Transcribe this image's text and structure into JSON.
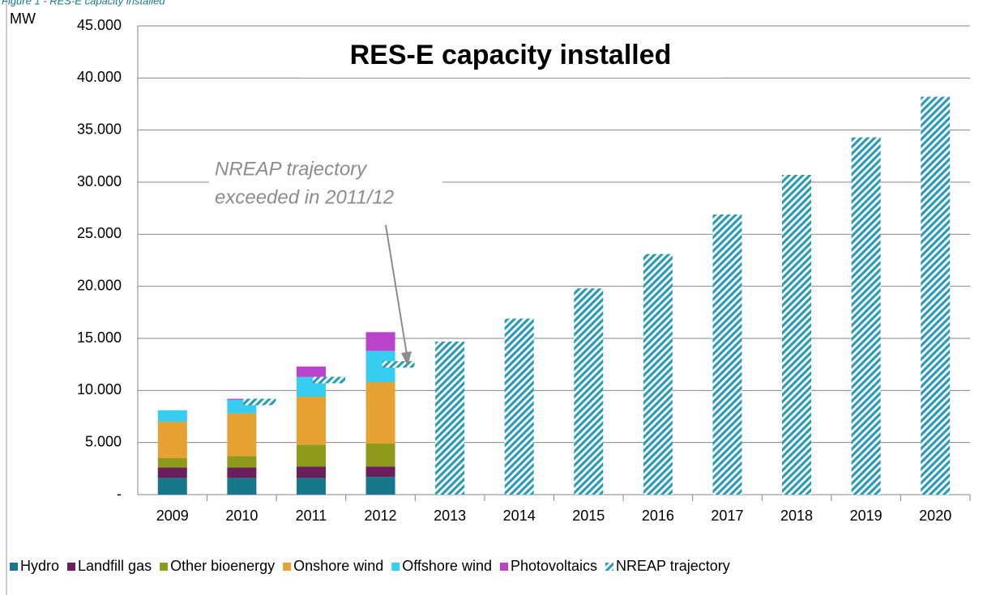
{
  "chart_data": {
    "type": "stacked_bar",
    "caption": "Figure 1 - RES-E capacity installed",
    "title": "RES-E capacity installed",
    "y_label": "MW",
    "annotation": [
      "NREAP trajectory",
      "exceeded in 2011/12"
    ],
    "categories": [
      "2009",
      "2010",
      "2011",
      "2012",
      "2013",
      "2014",
      "2015",
      "2016",
      "2017",
      "2018",
      "2019",
      "2020"
    ],
    "series": [
      {
        "name": "Hydro",
        "color": "#17788c",
        "values": [
          1600,
          1600,
          1600,
          1700,
          null,
          null,
          null,
          null,
          null,
          null,
          null,
          null
        ]
      },
      {
        "name": "Landfill gas",
        "color": "#6a1f5c",
        "values": [
          1000,
          1000,
          1100,
          1000,
          null,
          null,
          null,
          null,
          null,
          null,
          null,
          null
        ]
      },
      {
        "name": "Other bioenergy",
        "color": "#8d9a1b",
        "values": [
          900,
          1100,
          2100,
          2200,
          null,
          null,
          null,
          null,
          null,
          null,
          null,
          null
        ]
      },
      {
        "name": "Onshore wind",
        "color": "#e6a133",
        "values": [
          3500,
          4100,
          4600,
          5900,
          null,
          null,
          null,
          null,
          null,
          null,
          null,
          null
        ]
      },
      {
        "name": "Offshore wind",
        "color": "#37cdf0",
        "values": [
          1100,
          1300,
          1900,
          3000,
          null,
          null,
          null,
          null,
          null,
          null,
          null,
          null
        ]
      },
      {
        "name": "Photovoltaics",
        "color": "#b944c9",
        "values": [
          0,
          100,
          1000,
          1800,
          null,
          null,
          null,
          null,
          null,
          null,
          null,
          null
        ]
      },
      {
        "name": "NREAP trajectory",
        "color": "#2a9bb3",
        "pattern": "hatch",
        "values": [
          null,
          8900,
          11000,
          12500,
          14700,
          16900,
          19800,
          23100,
          26900,
          30700,
          34300,
          38200
        ]
      }
    ],
    "ylim": [
      0,
      45000
    ],
    "yticks": [
      {
        "value": 0,
        "label": "-"
      },
      {
        "value": 5000,
        "label": "5.000"
      },
      {
        "value": 10000,
        "label": "10.000"
      },
      {
        "value": 15000,
        "label": "15.000"
      },
      {
        "value": 20000,
        "label": "20.000"
      },
      {
        "value": 25000,
        "label": "25.000"
      },
      {
        "value": 30000,
        "label": "30.000"
      },
      {
        "value": 35000,
        "label": "35.000"
      },
      {
        "value": 40000,
        "label": "40.000"
      },
      {
        "value": 45000,
        "label": "45.000"
      }
    ],
    "grid": true,
    "legend": "bottom"
  }
}
